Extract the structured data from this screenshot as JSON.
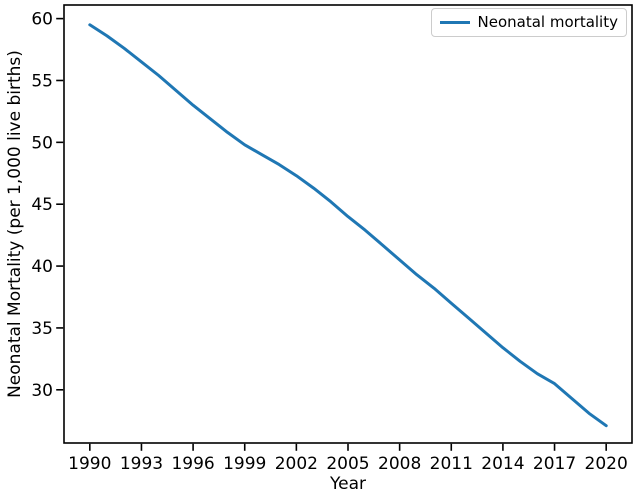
{
  "figure": {
    "xlabel": "Year",
    "ylabel": "Neonatal Mortality (per 1,000 live births)"
  },
  "legend": {
    "entries": [
      {
        "label": "Neonatal mortality",
        "color": "#1f77b4"
      }
    ]
  },
  "chart_data": {
    "type": "line",
    "title": "",
    "xlabel": "Year",
    "ylabel": "Neonatal Mortality (per 1,000 live births)",
    "legend_position": "upper right",
    "grid": false,
    "xlim": [
      1988.5,
      2021.5
    ],
    "ylim": [
      25.7,
      61.1
    ],
    "xticks": [
      1990,
      1993,
      1996,
      1999,
      2002,
      2005,
      2008,
      2011,
      2014,
      2017,
      2020
    ],
    "yticks": [
      30,
      35,
      40,
      45,
      50,
      55,
      60
    ],
    "axis_color": "#000000",
    "background": "#ffffff",
    "series": [
      {
        "name": "Neonatal mortality",
        "color": "#1f77b4",
        "line_width": 3,
        "x": [
          1990,
          1991,
          1992,
          1993,
          1994,
          1995,
          1996,
          1997,
          1998,
          1999,
          2000,
          2001,
          2002,
          2003,
          2004,
          2005,
          2006,
          2007,
          2008,
          2009,
          2010,
          2011,
          2012,
          2013,
          2014,
          2015,
          2016,
          2017,
          2018,
          2019,
          2020
        ],
        "values": [
          59.5,
          58.6,
          57.6,
          56.5,
          55.4,
          54.2,
          53.0,
          51.9,
          50.8,
          49.8,
          49.0,
          48.2,
          47.3,
          46.3,
          45.2,
          44.0,
          42.9,
          41.7,
          40.5,
          39.3,
          38.2,
          37.0,
          35.8,
          34.6,
          33.4,
          32.3,
          31.3,
          30.5,
          29.3,
          28.1,
          27.1
        ]
      }
    ]
  }
}
